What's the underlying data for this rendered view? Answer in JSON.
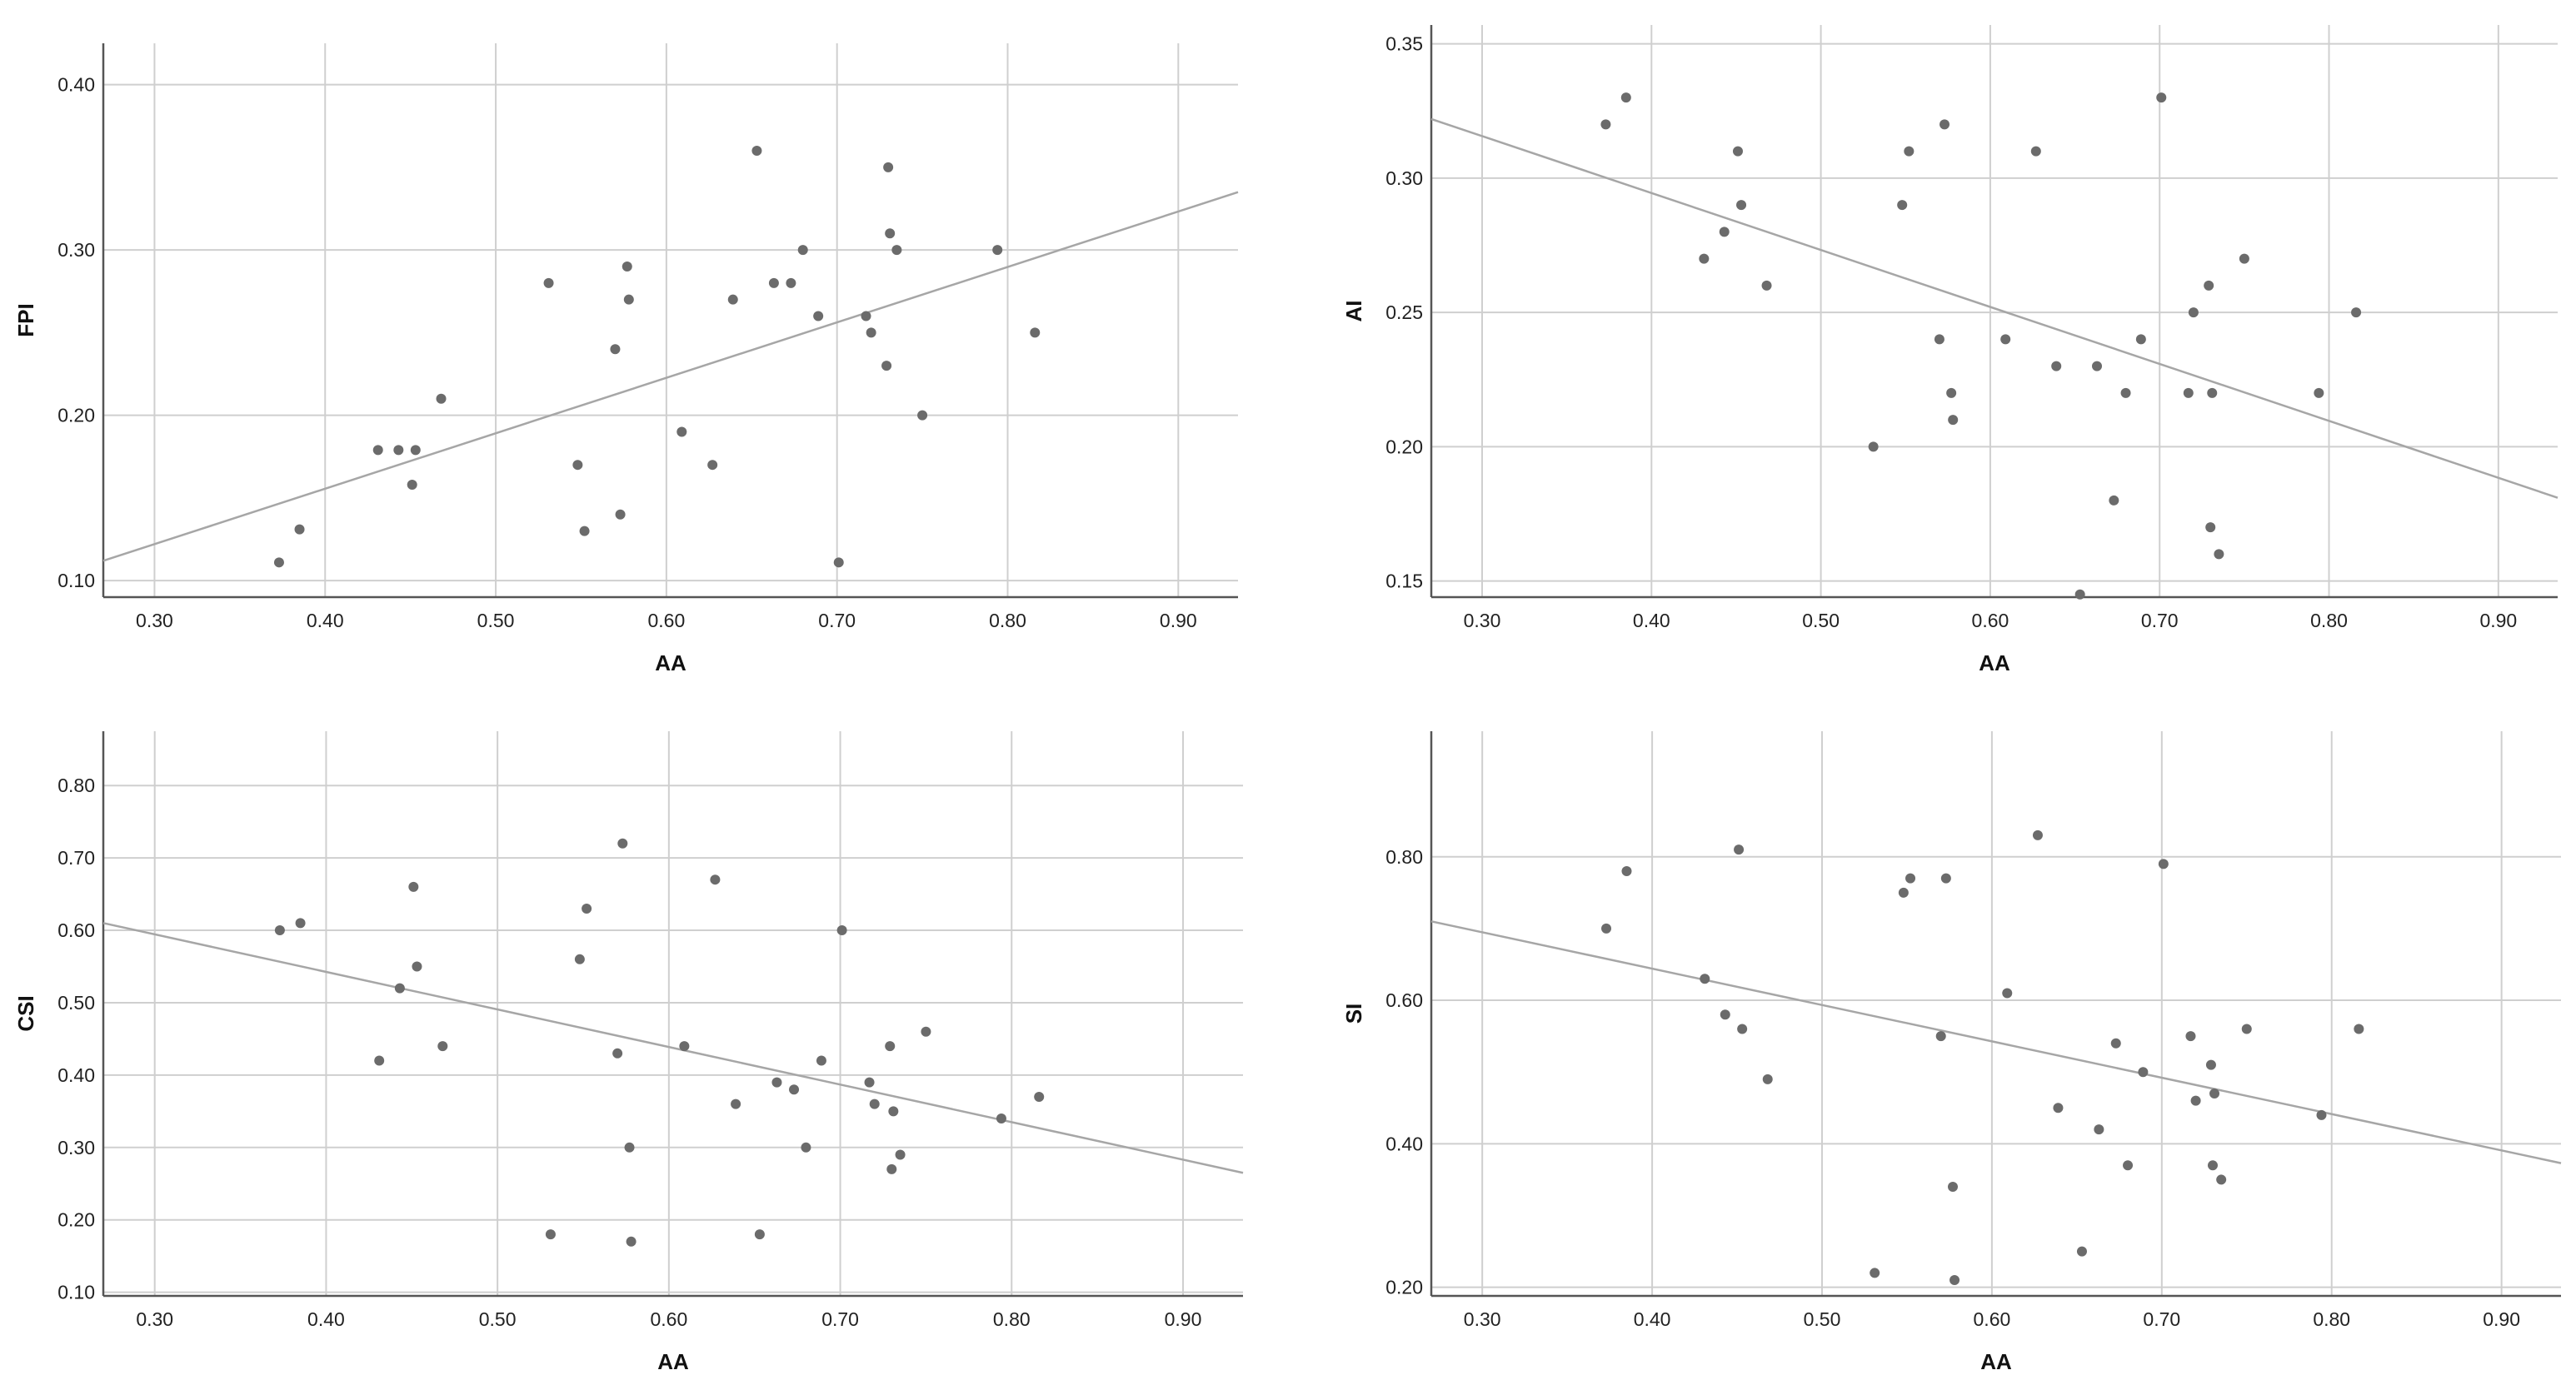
{
  "chart_data": [
    {
      "type": "scatter",
      "xlabel": "AA",
      "ylabel": "FPI",
      "xlim": [
        0.27,
        0.935
      ],
      "ylim": [
        0.09,
        0.425
      ],
      "xticks": [
        "0.30",
        "0.40",
        "0.50",
        "0.60",
        "0.70",
        "0.80",
        "0.90"
      ],
      "yticks": [
        "0.10",
        "0.20",
        "0.30",
        "0.40"
      ],
      "grid": true,
      "fit_line": [
        [
          0.27,
          0.112
        ],
        [
          0.935,
          0.335
        ]
      ],
      "x": [
        0.373,
        0.385,
        0.431,
        0.443,
        0.451,
        0.453,
        0.468,
        0.531,
        0.548,
        0.552,
        0.57,
        0.573,
        0.577,
        0.578,
        0.609,
        0.627,
        0.639,
        0.653,
        0.663,
        0.673,
        0.68,
        0.689,
        0.701,
        0.717,
        0.72,
        0.729,
        0.73,
        0.731,
        0.735,
        0.75,
        0.794,
        0.816
      ],
      "y": [
        0.111,
        0.131,
        0.179,
        0.179,
        0.158,
        0.179,
        0.21,
        0.28,
        0.17,
        0.13,
        0.24,
        0.14,
        0.29,
        0.27,
        0.19,
        0.17,
        0.27,
        0.36,
        0.28,
        0.28,
        0.3,
        0.26,
        0.111,
        0.26,
        0.25,
        0.23,
        0.35,
        0.31,
        0.3,
        0.2,
        0.3,
        0.25
      ]
    },
    {
      "type": "scatter",
      "xlabel": "AA",
      "ylabel": "AI",
      "xlim": [
        0.27,
        0.935
      ],
      "ylim": [
        0.144,
        0.357
      ],
      "xticks": [
        "0.30",
        "0.40",
        "0.50",
        "0.60",
        "0.70",
        "0.80",
        "0.90"
      ],
      "yticks": [
        "0.15",
        "0.20",
        "0.25",
        "0.30",
        "0.35"
      ],
      "grid": true,
      "fit_line": [
        [
          0.27,
          0.322
        ],
        [
          0.935,
          0.181
        ]
      ],
      "x": [
        0.373,
        0.385,
        0.431,
        0.443,
        0.451,
        0.453,
        0.468,
        0.531,
        0.548,
        0.552,
        0.57,
        0.573,
        0.577,
        0.578,
        0.609,
        0.627,
        0.639,
        0.653,
        0.663,
        0.673,
        0.68,
        0.689,
        0.701,
        0.717,
        0.72,
        0.729,
        0.73,
        0.731,
        0.735,
        0.75,
        0.794,
        0.816
      ],
      "y": [
        0.32,
        0.33,
        0.27,
        0.28,
        0.31,
        0.29,
        0.26,
        0.2,
        0.29,
        0.31,
        0.24,
        0.32,
        0.22,
        0.21,
        0.24,
        0.31,
        0.23,
        0.145,
        0.23,
        0.18,
        0.22,
        0.24,
        0.33,
        0.22,
        0.25,
        0.26,
        0.17,
        0.22,
        0.16,
        0.27,
        0.22,
        0.25
      ]
    },
    {
      "type": "scatter",
      "xlabel": "AA",
      "ylabel": "CSI",
      "xlim": [
        0.27,
        0.935
      ],
      "ylim": [
        0.095,
        0.875
      ],
      "xticks": [
        "0.30",
        "0.40",
        "0.50",
        "0.60",
        "0.70",
        "0.80",
        "0.90"
      ],
      "yticks": [
        "0.10",
        "0.20",
        "0.30",
        "0.40",
        "0.50",
        "0.60",
        "0.70",
        "0.80"
      ],
      "grid": true,
      "fit_line": [
        [
          0.27,
          0.61
        ],
        [
          0.935,
          0.265
        ]
      ],
      "x": [
        0.373,
        0.385,
        0.431,
        0.443,
        0.451,
        0.453,
        0.468,
        0.531,
        0.548,
        0.552,
        0.57,
        0.573,
        0.577,
        0.578,
        0.609,
        0.627,
        0.639,
        0.653,
        0.663,
        0.673,
        0.68,
        0.689,
        0.701,
        0.717,
        0.72,
        0.729,
        0.73,
        0.731,
        0.735,
        0.75,
        0.794,
        0.816
      ],
      "y": [
        0.6,
        0.61,
        0.42,
        0.52,
        0.66,
        0.55,
        0.44,
        0.18,
        0.56,
        0.63,
        0.43,
        0.72,
        0.3,
        0.17,
        0.44,
        0.67,
        0.36,
        0.18,
        0.39,
        0.38,
        0.3,
        0.42,
        0.6,
        0.39,
        0.36,
        0.44,
        0.27,
        0.35,
        0.29,
        0.46,
        0.34,
        0.37
      ]
    },
    {
      "type": "scatter",
      "xlabel": "AA",
      "ylabel": "SI",
      "xlim": [
        0.27,
        0.935
      ],
      "ylim": [
        0.188,
        0.975
      ],
      "xticks": [
        "0.30",
        "0.40",
        "0.50",
        "0.60",
        "0.70",
        "0.80",
        "0.90"
      ],
      "yticks": [
        "0.20",
        "0.40",
        "0.60",
        "0.80"
      ],
      "grid": true,
      "fit_line": [
        [
          0.27,
          0.71
        ],
        [
          0.935,
          0.373
        ]
      ],
      "x": [
        0.373,
        0.385,
        0.431,
        0.443,
        0.451,
        0.453,
        0.468,
        0.531,
        0.548,
        0.552,
        0.57,
        0.573,
        0.577,
        0.578,
        0.609,
        0.627,
        0.639,
        0.653,
        0.663,
        0.673,
        0.68,
        0.689,
        0.701,
        0.717,
        0.72,
        0.729,
        0.73,
        0.731,
        0.735,
        0.75,
        0.794,
        0.816
      ],
      "y": [
        0.7,
        0.78,
        0.63,
        0.58,
        0.81,
        0.56,
        0.49,
        0.22,
        0.75,
        0.77,
        0.55,
        0.77,
        0.34,
        0.21,
        0.61,
        0.83,
        0.45,
        0.25,
        0.42,
        0.54,
        0.37,
        0.5,
        0.79,
        0.55,
        0.46,
        0.51,
        0.37,
        0.47,
        0.35,
        0.56,
        0.44,
        0.56
      ]
    }
  ],
  "colors": {
    "point": "#6b6b6b",
    "fit_line": "#a6a6a6",
    "grid": "#cfcfcf",
    "axis": "#555555"
  }
}
